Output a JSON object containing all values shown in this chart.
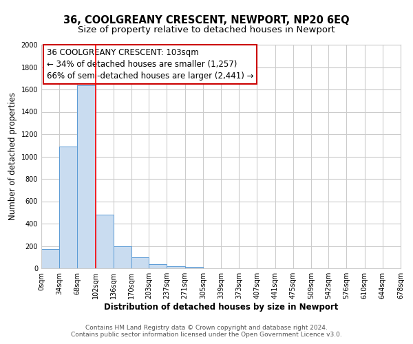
{
  "title": "36, COOLGREANY CRESCENT, NEWPORT, NP20 6EQ",
  "subtitle": "Size of property relative to detached houses in Newport",
  "xlabel": "Distribution of detached houses by size in Newport",
  "ylabel": "Number of detached properties",
  "bar_values": [
    170,
    1090,
    1635,
    480,
    200,
    100,
    38,
    20,
    10,
    0,
    0,
    0,
    0,
    0,
    0,
    0,
    0,
    0,
    0,
    0
  ],
  "bin_edges": [
    0,
    34,
    68,
    102,
    136,
    170,
    203,
    237,
    271,
    305,
    339,
    373,
    407,
    441,
    475,
    509,
    542,
    576,
    610,
    644,
    678
  ],
  "tick_labels": [
    "0sqm",
    "34sqm",
    "68sqm",
    "102sqm",
    "136sqm",
    "170sqm",
    "203sqm",
    "237sqm",
    "271sqm",
    "305sqm",
    "339sqm",
    "373sqm",
    "407sqm",
    "441sqm",
    "475sqm",
    "509sqm",
    "542sqm",
    "576sqm",
    "610sqm",
    "644sqm",
    "678sqm"
  ],
  "bar_color": "#c9dcf0",
  "bar_edge_color": "#5b9bd5",
  "red_line_x": 103,
  "ylim": [
    0,
    2000
  ],
  "yticks": [
    0,
    200,
    400,
    600,
    800,
    1000,
    1200,
    1400,
    1600,
    1800,
    2000
  ],
  "annotation_line1": "36 COOLGREANY CRESCENT: 103sqm",
  "annotation_line2": "← 34% of detached houses are smaller (1,257)",
  "annotation_line3": "66% of semi-detached houses are larger (2,441) →",
  "footer_line1": "Contains HM Land Registry data © Crown copyright and database right 2024.",
  "footer_line2": "Contains public sector information licensed under the Open Government Licence v3.0.",
  "background_color": "#ffffff",
  "grid_color": "#cccccc",
  "title_fontsize": 10.5,
  "subtitle_fontsize": 9.5,
  "annotation_fontsize": 8.5,
  "axis_fontsize": 8.5,
  "tick_fontsize": 7,
  "footer_fontsize": 6.5
}
